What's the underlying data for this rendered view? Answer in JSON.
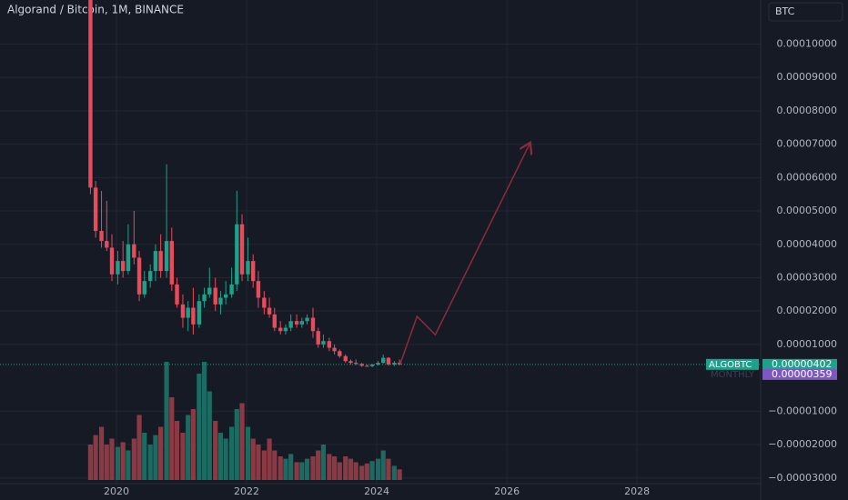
{
  "chart_data": {
    "type": "candlestick",
    "title": "Algorand / Bitcoin, 1M, BINANCE",
    "currency": "BTC",
    "x": [
      2019.6,
      2019.68,
      2019.77,
      2019.85,
      2019.93,
      2020.02,
      2020.1,
      2020.18,
      2020.27,
      2020.35,
      2020.43,
      2020.52,
      2020.6,
      2020.68,
      2020.77,
      2020.85,
      2020.93,
      2021.02,
      2021.1,
      2021.18,
      2021.27,
      2021.35,
      2021.43,
      2021.52,
      2021.6,
      2021.68,
      2021.77,
      2021.85,
      2021.93,
      2022.02,
      2022.1,
      2022.18,
      2022.27,
      2022.35,
      2022.43,
      2022.52,
      2022.6,
      2022.68,
      2022.77,
      2022.85,
      2022.93,
      2023.02,
      2023.1,
      2023.18,
      2023.27,
      2023.35,
      2023.43,
      2023.52,
      2023.6,
      2023.68,
      2023.77,
      2023.85,
      2023.93,
      2024.02,
      2024.1,
      2024.18,
      2024.27,
      2024.35
    ],
    "open": [
      0.00012,
      5.7e-05,
      4.4e-05,
      4.1e-05,
      3.9e-05,
      3.1e-05,
      3.5e-05,
      3.2e-05,
      4e-05,
      3.6e-05,
      2.5e-05,
      2.9e-05,
      3.2e-05,
      3.8e-05,
      3.2e-05,
      4.1e-05,
      2.8e-05,
      2.2e-05,
      1.8e-05,
      2.1e-05,
      1.6e-05,
      2.3e-05,
      2.5e-05,
      2.7e-05,
      2.2e-05,
      2.4e-05,
      2.5e-05,
      2.8e-05,
      4.6e-05,
      3.1e-05,
      3.5e-05,
      2.9e-05,
      2.4e-05,
      2.1e-05,
      1.9e-05,
      1.5e-05,
      1.4e-05,
      1.5e-05,
      1.7e-05,
      1.6e-05,
      1.7e-05,
      1.8e-05,
      1.4e-05,
      1e-05,
      1.1e-05,
      9e-06,
      8e-06,
      6.5e-06,
      5e-06,
      4.5e-06,
      4.2e-06,
      3.6e-06,
      3.5e-06,
      4e-06,
      4.5e-06,
      6e-06,
      4e-06,
      4.5e-06
    ],
    "high": [
      0.00013,
      5.9e-05,
      5.6e-05,
      5.3e-05,
      4.3e-05,
      3.8e-05,
      4.1e-05,
      4.6e-05,
      5e-05,
      3.8e-05,
      3.2e-05,
      3.4e-05,
      4e-05,
      4.3e-05,
      6.4e-05,
      4.5e-05,
      3e-05,
      2.5e-05,
      2.3e-05,
      2.7e-05,
      2.5e-05,
      2.7e-05,
      3.3e-05,
      3e-05,
      2.6e-05,
      2.9e-05,
      3.3e-05,
      5.6e-05,
      4.9e-05,
      4.2e-05,
      3.7e-05,
      3.2e-05,
      2.6e-05,
      2.4e-05,
      2.1e-05,
      1.7e-05,
      1.6e-05,
      1.9e-05,
      1.9e-05,
      1.8e-05,
      1.9e-05,
      2.1e-05,
      1.5e-05,
      1.3e-05,
      1.2e-05,
      1e-05,
      8.5e-06,
      7e-06,
      5.5e-06,
      5.5e-06,
      4.5e-06,
      4e-06,
      4.2e-06,
      5e-06,
      7e-06,
      6.2e-06,
      5e-06,
      5.5e-06
    ],
    "low": [
      5.5e-05,
      4.2e-05,
      3.9e-05,
      3.8e-05,
      2.9e-05,
      2.8e-05,
      3e-05,
      3.1e-05,
      3.4e-05,
      2.3e-05,
      2.4e-05,
      2.7e-05,
      2.9e-05,
      3e-05,
      3e-05,
      2.6e-05,
      2.1e-05,
      1.5e-05,
      1.4e-05,
      1.3e-05,
      1.5e-05,
      2.1e-05,
      2.4e-05,
      2e-05,
      1.9e-05,
      2.2e-05,
      2.4e-05,
      2.6e-05,
      2.9e-05,
      2.9e-05,
      2.7e-05,
      2.1e-05,
      1.9e-05,
      1.8e-05,
      1.4e-05,
      1.3e-05,
      1.3e-05,
      1.4e-05,
      1.5e-05,
      1.5e-05,
      1.6e-05,
      1.2e-05,
      9e-06,
      9e-06,
      8e-06,
      7e-06,
      6e-06,
      4.5e-06,
      4e-06,
      3.8e-06,
      3.3e-06,
      3.3e-06,
      3.2e-06,
      3.7e-06,
      4.3e-06,
      3.6e-06,
      3.6e-06,
      3.8e-06
    ],
    "close": [
      5.7e-05,
      4.4e-05,
      4.1e-05,
      3.9e-05,
      3.1e-05,
      3.5e-05,
      3.2e-05,
      4e-05,
      3.6e-05,
      2.5e-05,
      2.9e-05,
      3.2e-05,
      3.8e-05,
      3.2e-05,
      4.1e-05,
      2.8e-05,
      2.2e-05,
      1.8e-05,
      2.1e-05,
      1.6e-05,
      2.3e-05,
      2.5e-05,
      2.7e-05,
      2.2e-05,
      2.4e-05,
      2.5e-05,
      2.8e-05,
      4.6e-05,
      3.1e-05,
      3.5e-05,
      2.9e-05,
      2.4e-05,
      2.1e-05,
      1.9e-05,
      1.5e-05,
      1.4e-05,
      1.5e-05,
      1.7e-05,
      1.6e-05,
      1.7e-05,
      1.8e-05,
      1.4e-05,
      1e-05,
      1.1e-05,
      9e-06,
      8e-06,
      6.5e-06,
      5e-06,
      4.5e-06,
      4.2e-06,
      3.6e-06,
      3.5e-06,
      4e-06,
      4.5e-06,
      6e-06,
      4e-06,
      4.5e-06,
      4.02e-06
    ],
    "up_color": "#1fa08a",
    "down_color": "#e84b5a",
    "volume": {
      "values": [
        30,
        38,
        45,
        30,
        35,
        28,
        32,
        25,
        35,
        55,
        40,
        30,
        38,
        45,
        100,
        70,
        50,
        40,
        55,
        60,
        90,
        100,
        75,
        50,
        40,
        35,
        45,
        60,
        65,
        45,
        35,
        30,
        25,
        35,
        25,
        20,
        18,
        22,
        15,
        15,
        18,
        20,
        25,
        30,
        22,
        20,
        15,
        20,
        18,
        15,
        12,
        14,
        16,
        18,
        25,
        18,
        12,
        9
      ],
      "ylim": [
        0,
        100
      ],
      "up_color": "#1b6b62",
      "down_color": "#8b3a44"
    },
    "projection": {
      "x": [
        2024.36,
        2024.62,
        2024.9,
        2026.36
      ],
      "y": [
        4.2e-06,
        1.84e-05,
        1.29e-05,
        7.05e-05
      ],
      "color": "#8e2a3c"
    },
    "last_price": {
      "name": "ALGOBTC",
      "value": 4.02e-06,
      "label": "0.00000402",
      "color": "#1fa08a"
    },
    "monthly": {
      "name": "MONTHLY",
      "value": 3.59e-06,
      "label": "0.00000359",
      "color": "#7e57c2"
    },
    "xlim": [
      2018.21,
      2029.9
    ],
    "ylim": [
      -3.17e-05,
      0.0001132
    ],
    "xticks": [
      2020,
      2022,
      2024,
      2026,
      2028
    ],
    "yticks": [
      {
        "value": 0.0001,
        "label": "0.00010000"
      },
      {
        "value": 9e-05,
        "label": "0.00009000"
      },
      {
        "value": 8e-05,
        "label": "0.00008000"
      },
      {
        "value": 7e-05,
        "label": "0.00007000"
      },
      {
        "value": 6e-05,
        "label": "0.00006000"
      },
      {
        "value": 5e-05,
        "label": "0.00005000"
      },
      {
        "value": 4e-05,
        "label": "0.00004000"
      },
      {
        "value": 3e-05,
        "label": "0.00003000"
      },
      {
        "value": 2e-05,
        "label": "0.00002000"
      },
      {
        "value": 1e-05,
        "label": "0.00001000"
      },
      {
        "value": -1e-05,
        "label": "−0.00001000"
      },
      {
        "value": -2e-05,
        "label": "−0.00002000"
      },
      {
        "value": -3e-05,
        "label": "−0.00003000"
      }
    ],
    "grid": true
  }
}
